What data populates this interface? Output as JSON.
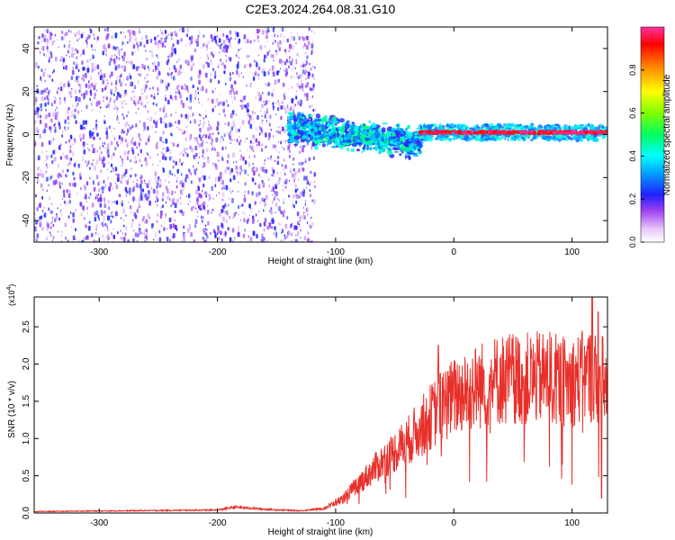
{
  "figure": {
    "title": "C2E3.2024.264.08.31.G10"
  },
  "chart_data": [
    {
      "type": "heatmap",
      "xlabel": "Height of straight line (km)",
      "ylabel": "Frequency (Hz)",
      "xlim": [
        -355,
        130
      ],
      "ylim": [
        -50,
        50
      ],
      "xticks": [
        -300,
        -200,
        -100,
        0,
        100
      ],
      "yticks": [
        -40,
        -20,
        0,
        20,
        40
      ],
      "colorbar": {
        "label": "Normalized spectral amplitude",
        "range": [
          0,
          1
        ],
        "ticks": [
          "0.0",
          "0.2",
          "0.4",
          "0.6",
          "0.8"
        ]
      },
      "regions": [
        {
          "x_range": [
            -355,
            -118
          ],
          "freq_range": [
            -50,
            50
          ],
          "amplitude": [
            0.05,
            0.25
          ],
          "description_id": "noise"
        },
        {
          "x_range": [
            -140,
            -28
          ],
          "freq_center": [
            3,
            -4
          ],
          "freq_spread": 6,
          "amplitude": [
            0.2,
            0.5
          ],
          "description_id": "transition"
        },
        {
          "x_range": [
            -28,
            130
          ],
          "freq_center": 1,
          "freq_spread": 2,
          "amplitude": [
            0.9,
            1.0
          ],
          "description_id": "carrier"
        }
      ],
      "grid": false
    },
    {
      "type": "line",
      "xlabel": "Height of straight line (km)",
      "ylabel": "SNR (10 * v/v)",
      "y_scale_label": "(x10",
      "y_scale_exp": "4",
      "xlim": [
        -355,
        130
      ],
      "ylim": [
        0,
        2.9
      ],
      "xticks": [
        -300,
        -200,
        -100,
        0,
        100
      ],
      "yticks": [
        "0.0",
        "0.5",
        "1.0",
        "1.5",
        "2.0",
        "2.5"
      ],
      "series": [
        {
          "color": "#e8302a",
          "envelope_x": [
            -355,
            -200,
            -185,
            -160,
            -130,
            -110,
            -95,
            -80,
            -60,
            -40,
            -25,
            -10,
            5,
            20,
            35,
            50,
            65,
            80,
            95,
            105,
            115,
            125,
            130
          ],
          "envelope_y": [
            0.02,
            0.04,
            0.08,
            0.05,
            0.03,
            0.06,
            0.18,
            0.4,
            0.7,
            0.95,
            1.2,
            1.45,
            1.6,
            1.7,
            1.78,
            1.82,
            1.8,
            1.82,
            1.75,
            1.8,
            1.85,
            1.8,
            1.7
          ],
          "noise_frac": 0.35,
          "spikes": [
            [
              -13,
              2.25
            ],
            [
              -5,
              1.9
            ],
            [
              117,
              2.9
            ],
            [
              122,
              2.7
            ],
            [
              125,
              0.2
            ]
          ]
        }
      ],
      "grid": false
    }
  ]
}
